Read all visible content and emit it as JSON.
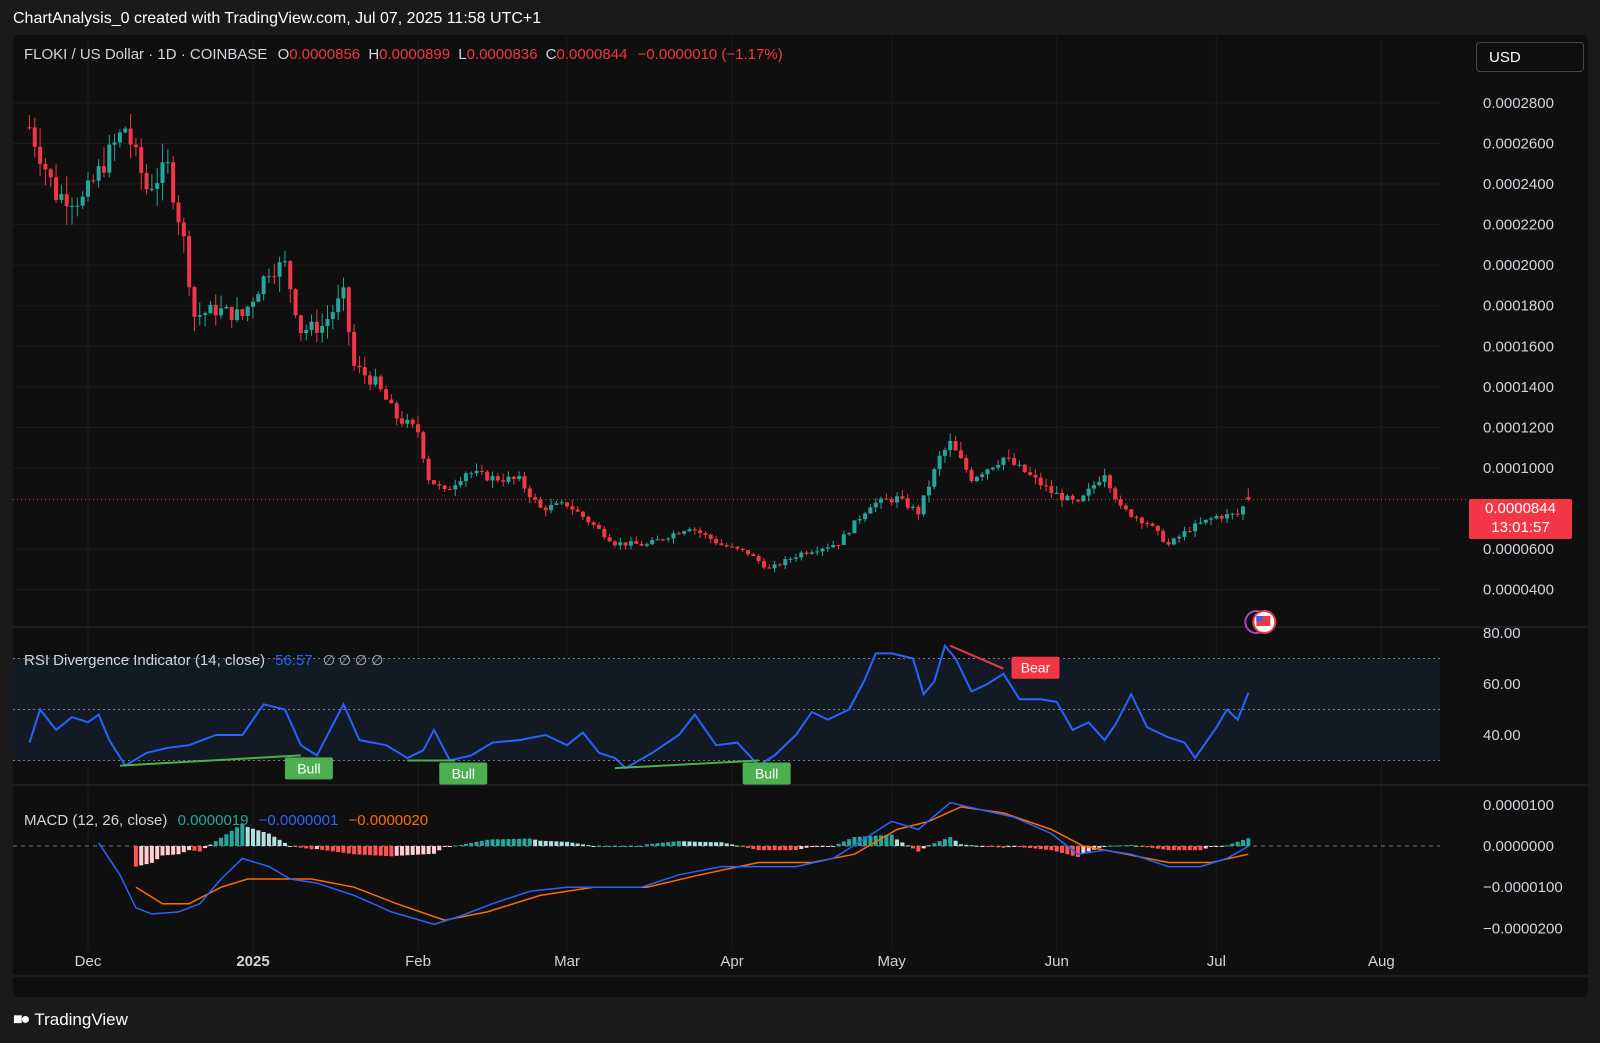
{
  "header": {
    "attribution": "ChartAnalysis_0 created with TradingView.com, Jul 07, 2025 11:58 UTC+1"
  },
  "symbol_bar": {
    "symbol": "FLOKI / US Dollar · 1D · COINBASE",
    "o_label": "O",
    "o_value": "0.0000856",
    "h_label": "H",
    "h_value": "0.0000899",
    "l_label": "L",
    "l_value": "0.0000836",
    "c_label": "C",
    "c_value": "0.0000844",
    "change": "−0.0000010 (−1.17%)"
  },
  "currency_button": "USD",
  "last_price": {
    "value": "0.0000844",
    "countdown": "13:01:57"
  },
  "price_axis": [
    "0.0002800",
    "0.0002600",
    "0.0002400",
    "0.0002200",
    "0.0002000",
    "0.0001800",
    "0.0001600",
    "0.0001400",
    "0.0001200",
    "0.0001000",
    "0.0000600",
    "0.0000400"
  ],
  "rsi_panel": {
    "title": "RSI Divergence Indicator (14, close)",
    "value": "56.57",
    "glyphs": "∅ ∅ ∅ ∅",
    "axis": [
      "80.00",
      "60.00",
      "40.00"
    ],
    "badges": {
      "bear": "Bear",
      "bull1": "Bull",
      "bull2": "Bull",
      "bull3": "Bull"
    }
  },
  "macd_panel": {
    "title": "MACD (12, 26, close)",
    "hist": "0.0000019",
    "macd": "−0.0000001",
    "signal": "−0.0000020",
    "axis": [
      "0.0000100",
      "0.0000000",
      "−0.0000100",
      "−0.0000200"
    ]
  },
  "time_axis": [
    "Dec",
    "2025",
    "Feb",
    "Mar",
    "Apr",
    "May",
    "Jun",
    "Jul",
    "Aug"
  ],
  "footer": {
    "brand": "TradingView"
  },
  "colors": {
    "up": "#26a69a",
    "down": "#f23645",
    "rsi": "#2962ff",
    "signal": "#ff6d00",
    "bull": "#4caf50",
    "bear": "#f23645"
  },
  "chart_data": [
    {
      "type": "candlestick",
      "title": "FLOKI / US Dollar · 1D · COINBASE",
      "x_range": [
        "2024-11-20",
        "2025-07-07"
      ],
      "ylim": [
        3e-05,
        0.00029
      ],
      "close_anchors": [
        [
          "2024-11-20",
          0.000268
        ],
        [
          "2024-11-25",
          0.000235
        ],
        [
          "2024-11-30",
          0.000232
        ],
        [
          "2024-12-05",
          0.000255
        ],
        [
          "2024-12-08",
          0.000268
        ],
        [
          "2024-12-12",
          0.000238
        ],
        [
          "2024-12-16",
          0.000248
        ],
        [
          "2024-12-19",
          0.000212
        ],
        [
          "2024-12-21",
          0.000175
        ],
        [
          "2024-12-25",
          0.000178
        ],
        [
          "2024-12-30",
          0.000175
        ],
        [
          "2025-01-04",
          0.000198
        ],
        [
          "2025-01-07",
          0.0002
        ],
        [
          "2025-01-10",
          0.000168
        ],
        [
          "2025-01-14",
          0.00017
        ],
        [
          "2025-01-18",
          0.000185
        ],
        [
          "2025-01-20",
          0.00015
        ],
        [
          "2025-01-24",
          0.000142
        ],
        [
          "2025-01-28",
          0.000125
        ],
        [
          "2025-02-01",
          0.000118
        ],
        [
          "2025-02-03",
          9.5e-05
        ],
        [
          "2025-02-06",
          8.8e-05
        ],
        [
          "2025-02-10",
          9.8e-05
        ],
        [
          "2025-02-15",
          9.5e-05
        ],
        [
          "2025-02-20",
          9.4e-05
        ],
        [
          "2025-02-24",
          8e-05
        ],
        [
          "2025-03-01",
          8.2e-05
        ],
        [
          "2025-03-04",
          7.6e-05
        ],
        [
          "2025-03-10",
          6.3e-05
        ],
        [
          "2025-03-16",
          6.2e-05
        ],
        [
          "2025-03-24",
          7.1e-05
        ],
        [
          "2025-03-30",
          6.2e-05
        ],
        [
          "2025-04-04",
          5.8e-05
        ],
        [
          "2025-04-08",
          5e-05
        ],
        [
          "2025-04-14",
          5.8e-05
        ],
        [
          "2025-04-21",
          6.3e-05
        ],
        [
          "2025-04-27",
          8.2e-05
        ],
        [
          "2025-05-02",
          8.5e-05
        ],
        [
          "2025-05-06",
          7.8e-05
        ],
        [
          "2025-05-10",
          0.000105
        ],
        [
          "2025-05-12",
          0.000112
        ],
        [
          "2025-05-16",
          9.5e-05
        ],
        [
          "2025-05-22",
          0.000105
        ],
        [
          "2025-05-26",
          9.8e-05
        ],
        [
          "2025-05-31",
          8.8e-05
        ],
        [
          "2025-06-05",
          8.2e-05
        ],
        [
          "2025-06-10",
          9.8e-05
        ],
        [
          "2025-06-13",
          8e-05
        ],
        [
          "2025-06-18",
          7.3e-05
        ],
        [
          "2025-06-22",
          6.2e-05
        ],
        [
          "2025-06-26",
          7e-05
        ],
        [
          "2025-07-01",
          7.6e-05
        ],
        [
          "2025-07-05",
          7.7e-05
        ],
        [
          "2025-07-07",
          8.44e-05
        ]
      ],
      "last": {
        "open": 8.56e-05,
        "high": 8.99e-05,
        "low": 8.36e-05,
        "close": 8.44e-05
      }
    },
    {
      "type": "line",
      "title": "RSI Divergence Indicator (14, close)",
      "ylim": [
        20,
        80
      ],
      "bands": [
        30,
        50,
        70
      ],
      "series": [
        {
          "values": [
            [
              "2024-11-20",
              37
            ],
            [
              "2024-11-22",
              50
            ],
            [
              "2024-11-25",
              42
            ],
            [
              "2024-11-28",
              47
            ],
            [
              "2024-12-01",
              45
            ],
            [
              "2024-12-03",
              48
            ],
            [
              "2024-12-05",
              38
            ],
            [
              "2024-12-08",
              28
            ],
            [
              "2024-12-12",
              33
            ],
            [
              "2024-12-16",
              35
            ],
            [
              "2024-12-20",
              36
            ],
            [
              "2024-12-25",
              40
            ],
            [
              "2024-12-30",
              40
            ],
            [
              "2025-01-03",
              52
            ],
            [
              "2025-01-07",
              50
            ],
            [
              "2025-01-10",
              36
            ],
            [
              "2025-01-13",
              32
            ],
            [
              "2025-01-16",
              44
            ],
            [
              "2025-01-18",
              52
            ],
            [
              "2025-01-21",
              38
            ],
            [
              "2025-01-26",
              36
            ],
            [
              "2025-01-30",
              31
            ],
            [
              "2025-02-02",
              34
            ],
            [
              "2025-02-04",
              42
            ],
            [
              "2025-02-07",
              30
            ],
            [
              "2025-02-11",
              32
            ],
            [
              "2025-02-15",
              37
            ],
            [
              "2025-02-20",
              38
            ],
            [
              "2025-02-25",
              40
            ],
            [
              "2025-03-01",
              36
            ],
            [
              "2025-03-04",
              41
            ],
            [
              "2025-03-07",
              33
            ],
            [
              "2025-03-10",
              31
            ],
            [
              "2025-03-12",
              27
            ],
            [
              "2025-03-17",
              33
            ],
            [
              "2025-03-22",
              40
            ],
            [
              "2025-03-25",
              48
            ],
            [
              "2025-03-29",
              36
            ],
            [
              "2025-04-02",
              37
            ],
            [
              "2025-04-06",
              28
            ],
            [
              "2025-04-09",
              32
            ],
            [
              "2025-04-13",
              40
            ],
            [
              "2025-04-16",
              49
            ],
            [
              "2025-04-19",
              46
            ],
            [
              "2025-04-23",
              50
            ],
            [
              "2025-04-26",
              62
            ],
            [
              "2025-04-28",
              72
            ],
            [
              "2025-05-01",
              72
            ],
            [
              "2025-05-05",
              70
            ],
            [
              "2025-05-07",
              56
            ],
            [
              "2025-05-09",
              61
            ],
            [
              "2025-05-11",
              75
            ],
            [
              "2025-05-13",
              70
            ],
            [
              "2025-05-16",
              57
            ],
            [
              "2025-05-19",
              60
            ],
            [
              "2025-05-22",
              64
            ],
            [
              "2025-05-25",
              54
            ],
            [
              "2025-05-29",
              54
            ],
            [
              "2025-06-01",
              53
            ],
            [
              "2025-06-04",
              42
            ],
            [
              "2025-06-07",
              45
            ],
            [
              "2025-06-10",
              38
            ],
            [
              "2025-06-12",
              44
            ],
            [
              "2025-06-15",
              56
            ],
            [
              "2025-06-18",
              43
            ],
            [
              "2025-06-22",
              39
            ],
            [
              "2025-06-25",
              37
            ],
            [
              "2025-06-27",
              31
            ],
            [
              "2025-07-01",
              43
            ],
            [
              "2025-07-03",
              50
            ],
            [
              "2025-07-05",
              46
            ],
            [
              "2025-07-07",
              56.57
            ]
          ]
        }
      ],
      "divergences": [
        {
          "kind": "Bull",
          "from": [
            "2024-12-07",
            28
          ],
          "to": [
            "2025-01-10",
            32
          ]
        },
        {
          "kind": "Bull",
          "from": [
            "2025-01-30",
            30
          ],
          "to": [
            "2025-02-08",
            30
          ]
        },
        {
          "kind": "Bull",
          "from": [
            "2025-03-10",
            27
          ],
          "to": [
            "2025-04-06",
            30
          ]
        },
        {
          "kind": "Bear",
          "from": [
            "2025-05-12",
            75
          ],
          "to": [
            "2025-05-22",
            66
          ]
        }
      ]
    },
    {
      "type": "bar+line",
      "title": "MACD (12, 26, close)",
      "ylim": [
        -2.2e-05,
        1.1e-05
      ],
      "macd": [
        [
          "2024-12-03",
          8e-07
        ],
        [
          "2024-12-07",
          -7e-06
        ],
        [
          "2024-12-10",
          -1.5e-05
        ],
        [
          "2024-12-13",
          -1.65e-05
        ],
        [
          "2024-12-18",
          -1.6e-05
        ],
        [
          "2024-12-22",
          -1.4e-05
        ],
        [
          "2024-12-26",
          -8e-06
        ],
        [
          "2024-12-30",
          -3e-06
        ],
        [
          "2025-01-04",
          -5e-06
        ],
        [
          "2025-01-08",
          -8e-06
        ],
        [
          "2025-01-13",
          -9e-06
        ],
        [
          "2025-01-20",
          -1.2e-05
        ],
        [
          "2025-01-27",
          -1.6e-05
        ],
        [
          "2025-02-04",
          -1.9e-05
        ],
        [
          "2025-02-09",
          -1.7e-05
        ],
        [
          "2025-02-15",
          -1.4e-05
        ],
        [
          "2025-02-22",
          -1.1e-05
        ],
        [
          "2025-03-01",
          -1e-05
        ],
        [
          "2025-03-08",
          -1e-05
        ],
        [
          "2025-03-15",
          -1e-05
        ],
        [
          "2025-03-22",
          -7e-06
        ],
        [
          "2025-03-30",
          -5e-06
        ],
        [
          "2025-04-06",
          -5e-06
        ],
        [
          "2025-04-13",
          -5e-06
        ],
        [
          "2025-04-20",
          -3e-06
        ],
        [
          "2025-04-25",
          1e-06
        ],
        [
          "2025-05-01",
          6e-06
        ],
        [
          "2025-05-06",
          4e-06
        ],
        [
          "2025-05-12",
          1.05e-05
        ],
        [
          "2025-05-17",
          9e-06
        ],
        [
          "2025-05-24",
          7e-06
        ],
        [
          "2025-05-31",
          3e-06
        ],
        [
          "2025-06-05",
          -2e-06
        ],
        [
          "2025-06-10",
          -1e-06
        ],
        [
          "2025-06-15",
          -2e-06
        ],
        [
          "2025-06-22",
          -5e-06
        ],
        [
          "2025-06-28",
          -5e-06
        ],
        [
          "2025-07-03",
          -3e-06
        ],
        [
          "2025-07-07",
          -1e-07
        ]
      ],
      "signal": [
        [
          "2024-12-10",
          -1e-05
        ],
        [
          "2024-12-15",
          -1.4e-05
        ],
        [
          "2024-12-20",
          -1.4e-05
        ],
        [
          "2024-12-26",
          -1e-05
        ],
        [
          "2024-12-31",
          -8e-06
        ],
        [
          "2025-01-06",
          -8e-06
        ],
        [
          "2025-01-12",
          -8e-06
        ],
        [
          "2025-01-20",
          -1e-05
        ],
        [
          "2025-01-28",
          -1.4e-05
        ],
        [
          "2025-02-06",
          -1.8e-05
        ],
        [
          "2025-02-14",
          -1.6e-05
        ],
        [
          "2025-02-24",
          -1.2e-05
        ],
        [
          "2025-03-06",
          -1e-05
        ],
        [
          "2025-03-16",
          -1e-05
        ],
        [
          "2025-03-26",
          -7e-06
        ],
        [
          "2025-04-06",
          -4e-06
        ],
        [
          "2025-04-16",
          -4e-06
        ],
        [
          "2025-04-24",
          -2e-06
        ],
        [
          "2025-05-02",
          4e-06
        ],
        [
          "2025-05-08",
          6e-06
        ],
        [
          "2025-05-14",
          9.5e-06
        ],
        [
          "2025-05-22",
          8e-06
        ],
        [
          "2025-05-31",
          4e-06
        ],
        [
          "2025-06-06",
          0.0
        ],
        [
          "2025-06-14",
          -2e-06
        ],
        [
          "2025-06-22",
          -4e-06
        ],
        [
          "2025-06-30",
          -4e-06
        ],
        [
          "2025-07-07",
          -2e-06
        ]
      ]
    }
  ]
}
